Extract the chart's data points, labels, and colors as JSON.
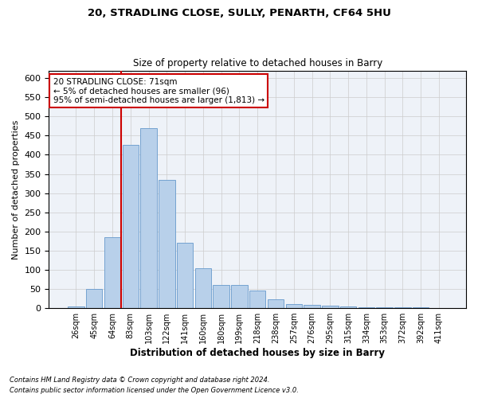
{
  "title1": "20, STRADLING CLOSE, SULLY, PENARTH, CF64 5HU",
  "title2": "Size of property relative to detached houses in Barry",
  "xlabel": "Distribution of detached houses by size in Barry",
  "ylabel": "Number of detached properties",
  "categories": [
    "26sqm",
    "45sqm",
    "64sqm",
    "83sqm",
    "103sqm",
    "122sqm",
    "141sqm",
    "160sqm",
    "180sqm",
    "199sqm",
    "218sqm",
    "238sqm",
    "257sqm",
    "276sqm",
    "295sqm",
    "315sqm",
    "334sqm",
    "353sqm",
    "372sqm",
    "392sqm",
    "411sqm"
  ],
  "values": [
    5,
    50,
    185,
    425,
    470,
    335,
    170,
    105,
    60,
    60,
    45,
    22,
    10,
    8,
    7,
    5,
    3,
    2,
    2,
    2,
    1
  ],
  "bar_color": "#b8d0ea",
  "bar_edge_color": "#6699cc",
  "vline_color": "#cc0000",
  "annotation_text": "20 STRADLING CLOSE: 71sqm\n← 5% of detached houses are smaller (96)\n95% of semi-detached houses are larger (1,813) →",
  "annotation_box_color": "#ffffff",
  "annotation_box_edge": "#cc0000",
  "ylim": [
    0,
    620
  ],
  "yticks": [
    0,
    50,
    100,
    150,
    200,
    250,
    300,
    350,
    400,
    450,
    500,
    550,
    600
  ],
  "footer1": "Contains HM Land Registry data © Crown copyright and database right 2024.",
  "footer2": "Contains public sector information licensed under the Open Government Licence v3.0.",
  "background_color": "#ffffff",
  "plot_bg_color": "#eef2f8",
  "grid_color": "#cccccc"
}
